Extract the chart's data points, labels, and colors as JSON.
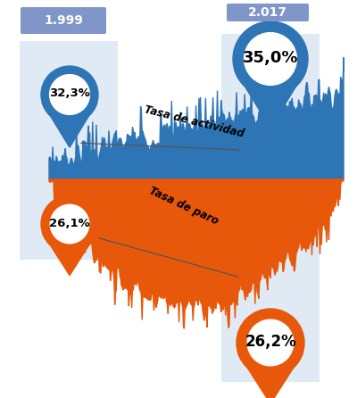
{
  "bg_color": "#ffffff",
  "blue_color": "#2E75B6",
  "blue_light": "#C5D9ED",
  "orange_color": "#E8580A",
  "label_bg_blue": "#8096C8",
  "year_left": "1.999",
  "year_right": "2.017",
  "actividad_left_pct": "32,3%",
  "actividad_right_pct": "35,0%",
  "paro_left_pct": "26,1%",
  "paro_right_pct": "26,2%",
  "label_actividad": "Tasa de actividad",
  "label_paro": "Tasa de paro",
  "fig_width": 4.0,
  "fig_height": 4.46,
  "fig_dpi": 100,
  "xlim": [
    0,
    400
  ],
  "ylim": [
    0,
    446
  ],
  "mid_y": 245,
  "blue_seed": 7,
  "orange_seed": 13
}
